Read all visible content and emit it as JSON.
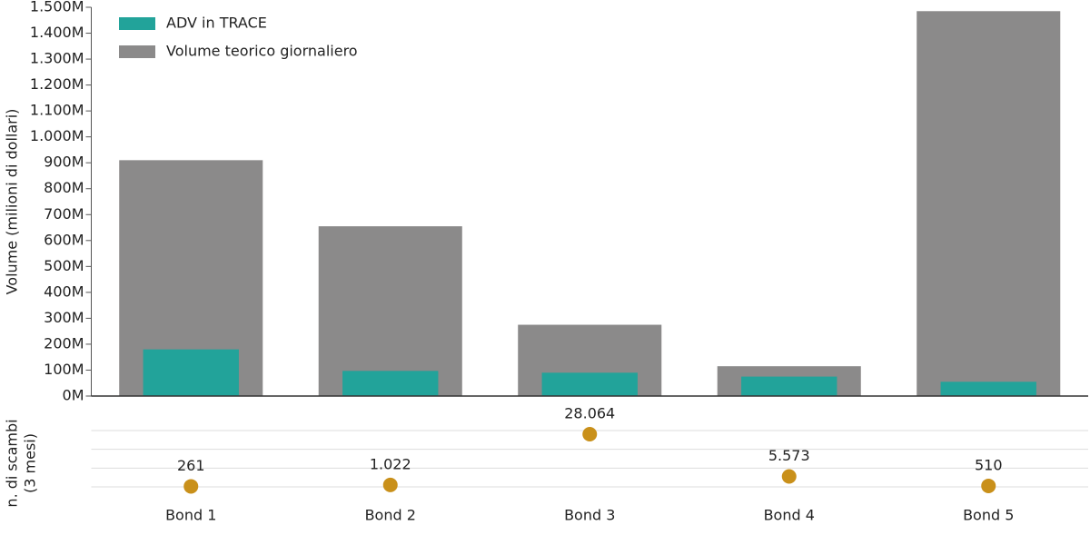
{
  "chart_data": [
    {
      "type": "bar",
      "ylabel": "Volume (milioni di dollari)",
      "series": [
        {
          "name": "Volume teorico giornaliero",
          "color": "#8b8a8a",
          "values": [
            910,
            655,
            275,
            115,
            1485
          ]
        },
        {
          "name": "ADV in TRACE",
          "color": "#22a39a",
          "values": [
            180,
            97,
            90,
            75,
            55
          ]
        }
      ],
      "ylim": [
        0,
        1500
      ],
      "yticks": [
        {
          "value": 0,
          "label": "0M"
        },
        {
          "value": 100,
          "label": "100M"
        },
        {
          "value": 200,
          "label": "200M"
        },
        {
          "value": 300,
          "label": "300M"
        },
        {
          "value": 400,
          "label": "400M"
        },
        {
          "value": 500,
          "label": "500M"
        },
        {
          "value": 600,
          "label": "600M"
        },
        {
          "value": 700,
          "label": "700M"
        },
        {
          "value": 800,
          "label": "800M"
        },
        {
          "value": 900,
          "label": "900M"
        },
        {
          "value": 1000,
          "label": "1.000M"
        },
        {
          "value": 1100,
          "label": "1.100M"
        },
        {
          "value": 1200,
          "label": "1.200M"
        },
        {
          "value": 1300,
          "label": "1.300M"
        },
        {
          "value": 1400,
          "label": "1.400M"
        },
        {
          "value": 1500,
          "label": "1.500M"
        }
      ]
    },
    {
      "type": "dot",
      "ylabel_lines": [
        "n. di scambi",
        "(3 mesi)"
      ],
      "categories": [
        "Bond 1",
        "Bond 2",
        "Bond 3",
        "Bond 4",
        "Bond 5"
      ],
      "values": [
        261,
        1022,
        28064,
        5573,
        510
      ],
      "value_labels": [
        "261",
        "1.022",
        "28.064",
        "5.573",
        "510"
      ],
      "color": "#c9901a",
      "ylim": [
        0,
        30000
      ],
      "yticks": [
        0,
        10000,
        20000,
        30000
      ],
      "grid": true
    }
  ]
}
